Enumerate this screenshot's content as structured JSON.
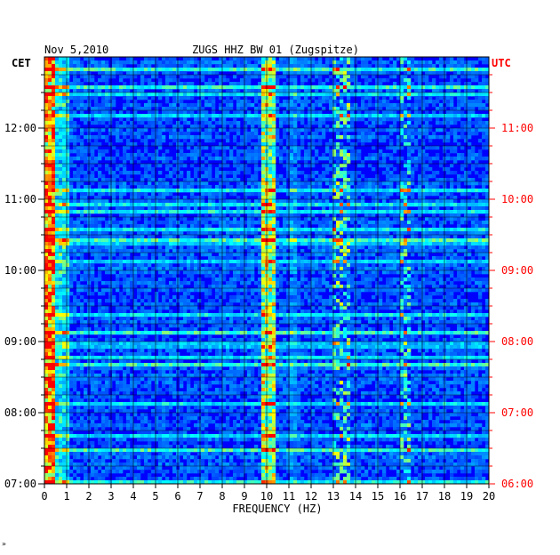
{
  "chart_data": {
    "type": "heatmap",
    "header": {
      "date": "Nov 5,2010",
      "station": "ZUGS HHZ BW 01 (Zugspitze)"
    },
    "left_axis": {
      "label": "CET",
      "ticks": [
        {
          "label": "07:00",
          "hours_from_top": 6
        },
        {
          "label": "08:00",
          "hours_from_top": 5
        },
        {
          "label": "09:00",
          "hours_from_top": 4
        },
        {
          "label": "10:00",
          "hours_from_top": 3
        },
        {
          "label": "11:00",
          "hours_from_top": 2
        },
        {
          "label": "12:00",
          "hours_from_top": 1
        }
      ]
    },
    "right_axis": {
      "label": "UTC",
      "color": "#ff0000",
      "ticks": [
        {
          "label": "06:00",
          "hours_from_top": 6
        },
        {
          "label": "07:00",
          "hours_from_top": 5
        },
        {
          "label": "08:00",
          "hours_from_top": 4
        },
        {
          "label": "09:00",
          "hours_from_top": 3
        },
        {
          "label": "10:00",
          "hours_from_top": 2
        },
        {
          "label": "11:00",
          "hours_from_top": 1
        }
      ]
    },
    "x_axis": {
      "label": "FREQUENCY (HZ)",
      "range": [
        0,
        20
      ],
      "ticks": [
        "0",
        "1",
        "2",
        "3",
        "4",
        "5",
        "6",
        "7",
        "8",
        "9",
        "10",
        "11",
        "12",
        "13",
        "14",
        "15",
        "16",
        "17",
        "18",
        "19",
        "20"
      ]
    },
    "time_range_hours": 6,
    "colormap": [
      "#00008b",
      "#0000ff",
      "#0080ff",
      "#00ffff",
      "#ffff00",
      "#ff0000"
    ],
    "footer_mark": "»"
  }
}
